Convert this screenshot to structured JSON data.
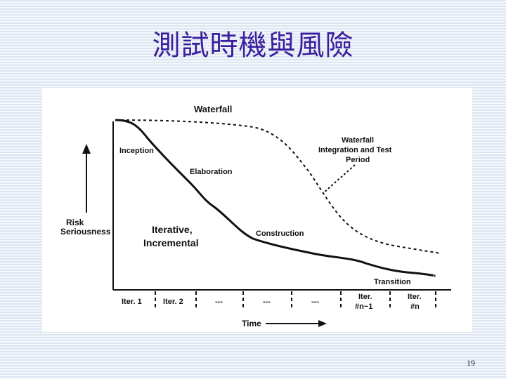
{
  "slide": {
    "title": "測試時機與風險",
    "page_number": "19"
  },
  "diagram": {
    "waterfall_label": "Waterfall",
    "waterfall_test_label": [
      "Waterfall",
      "Integration and Test",
      "Period"
    ],
    "y_axis_label": [
      "Risk",
      "Seriousness"
    ],
    "x_axis_label": "Time",
    "iterative_label": [
      "Iterative,",
      "Incremental"
    ],
    "phase_labels": {
      "inception": "Inception",
      "elaboration": "Elaboration",
      "construction": "Construction",
      "transition": "Transition"
    },
    "iterations": [
      "Iter. 1",
      "Iter. 2",
      "---",
      "---",
      "---",
      [
        "Iter.",
        "#n−1"
      ],
      [
        "Iter.",
        "#n"
      ]
    ]
  }
}
